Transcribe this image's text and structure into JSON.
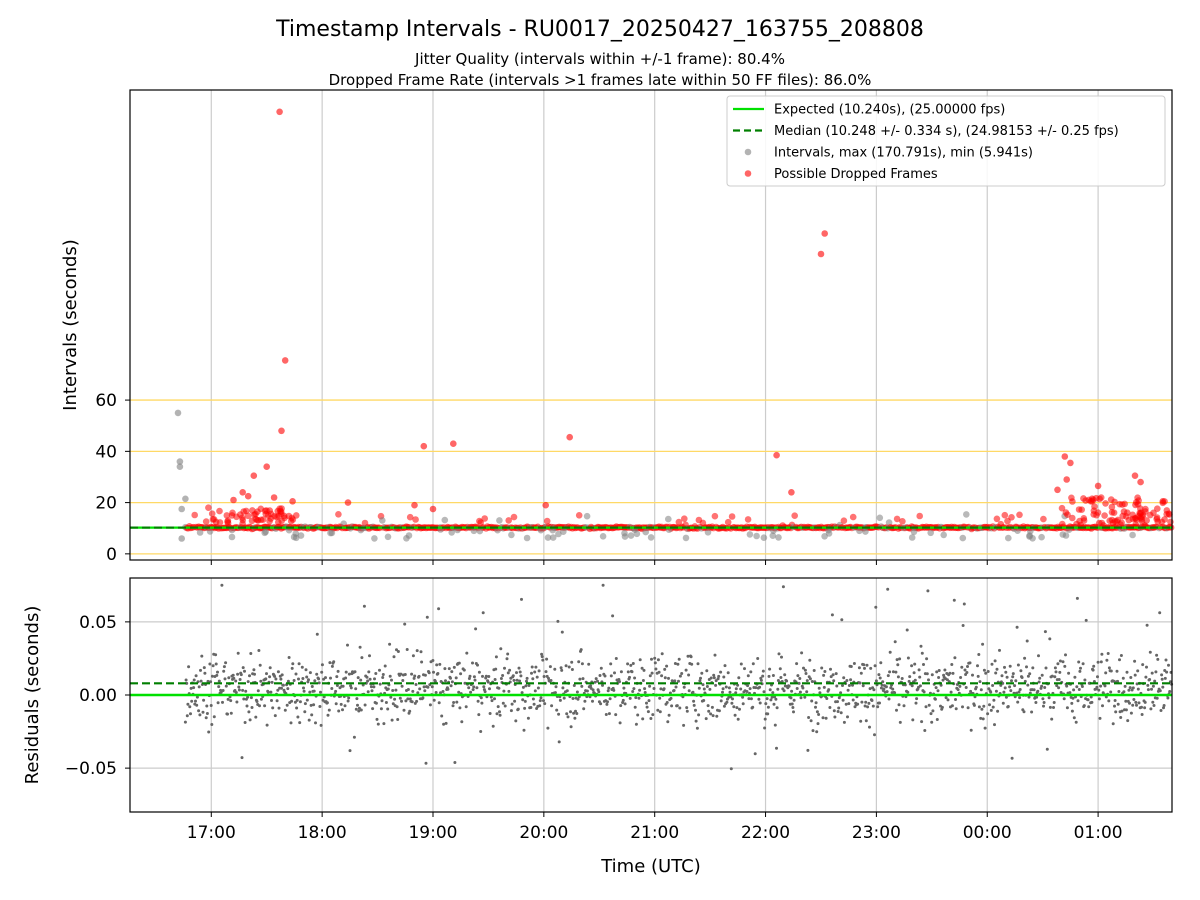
{
  "header": {
    "title": "Timestamp Intervals - RU0017_20250427_163755_208808",
    "subtitle_1": "Jitter Quality (intervals within +/-1 frame): 80.4%",
    "subtitle_2": "Dropped Frame Rate (intervals >1 frames late within 50 FF files): 86.0%"
  },
  "colors": {
    "expected": "#00e000",
    "median": "#007f00",
    "interval_points": "#808080",
    "dropped_points": "#ff0000",
    "reference_lines": "#ffd966",
    "grid": "#cccccc",
    "residual_points": "#666666"
  },
  "chart_data": [
    {
      "type": "scatter",
      "panel": "intervals",
      "ylabel": "Intervals (seconds)",
      "xlabel": "",
      "x_ticks": [
        "17:00",
        "18:00",
        "19:00",
        "20:00",
        "21:00",
        "22:00",
        "23:00",
        "00:00",
        "01:00"
      ],
      "xlim": [
        "16:16",
        "01:40"
      ],
      "yticks": [
        0,
        20,
        40,
        60
      ],
      "ylim": [
        -2.4,
        181
      ],
      "reference_lines": [
        0,
        20,
        40,
        60
      ],
      "vertical_grid": true,
      "expected_value": 10.24,
      "median_value": 10.248,
      "legend_position": "top-right",
      "legend": [
        {
          "label": "Expected (10.240s), (25.00000 fps)",
          "style": "solid-line"
        },
        {
          "label": "Median (10.248 +/- 0.334 s), (24.98153 +/- 0.25 fps)",
          "style": "dashed-line"
        },
        {
          "label": "Intervals, max (170.791s), min (5.941s)",
          "style": "gray-dot"
        },
        {
          "label": "Possible Dropped Frames",
          "style": "red-dot"
        }
      ],
      "series": [
        {
          "name": "Possible Dropped Frames",
          "outliers": [
            {
              "x": "17:37",
              "y": 172.5
            },
            {
              "x": "17:40",
              "y": 75.5
            },
            {
              "x": "17:38",
              "y": 48
            },
            {
              "x": "17:30",
              "y": 34
            },
            {
              "x": "17:34",
              "y": 22
            },
            {
              "x": "17:23",
              "y": 30.5
            },
            {
              "x": "17:17",
              "y": 24
            },
            {
              "x": "17:20",
              "y": 22.5
            },
            {
              "x": "17:12",
              "y": 21
            },
            {
              "x": "17:44",
              "y": 20.5
            },
            {
              "x": "18:14",
              "y": 20
            },
            {
              "x": "18:50",
              "y": 19
            },
            {
              "x": "18:55",
              "y": 42
            },
            {
              "x": "19:11",
              "y": 43
            },
            {
              "x": "19:00",
              "y": 17.5
            },
            {
              "x": "20:01",
              "y": 19
            },
            {
              "x": "20:14",
              "y": 45.5
            },
            {
              "x": "22:06",
              "y": 38.5
            },
            {
              "x": "22:14",
              "y": 24
            },
            {
              "x": "22:30",
              "y": 117
            },
            {
              "x": "22:32",
              "y": 125
            },
            {
              "x": "00:38",
              "y": 25
            },
            {
              "x": "00:42",
              "y": 38
            },
            {
              "x": "00:45",
              "y": 35.5
            },
            {
              "x": "00:43",
              "y": 29
            },
            {
              "x": "01:00",
              "y": 26.5
            },
            {
              "x": "01:20",
              "y": 30.5
            },
            {
              "x": "01:23",
              "y": 28
            },
            {
              "x": "01:35",
              "y": 20.5
            }
          ]
        },
        {
          "name": "Intervals",
          "outliers": [
            {
              "x": "16:42",
              "y": 55
            },
            {
              "x": "16:43",
              "y": 36
            },
            {
              "x": "16:43",
              "y": 34
            },
            {
              "x": "16:46",
              "y": 21.5
            },
            {
              "x": "16:44",
              "y": 17.5
            },
            {
              "x": "16:44",
              "y": 6
            }
          ]
        }
      ]
    },
    {
      "type": "scatter",
      "panel": "residuals",
      "ylabel": "Residuals (seconds)",
      "xlabel": "Time (UTC)",
      "x_ticks": [
        "17:00",
        "18:00",
        "19:00",
        "20:00",
        "21:00",
        "22:00",
        "23:00",
        "00:00",
        "01:00"
      ],
      "yticks": [
        -0.05,
        0.0,
        0.05
      ],
      "ytick_labels": [
        "−0.05",
        "0.00",
        "0.05"
      ],
      "ylim": [
        -0.08,
        0.08
      ],
      "expected_residual": 0.0,
      "median_residual": 0.008,
      "grid": true
    }
  ]
}
